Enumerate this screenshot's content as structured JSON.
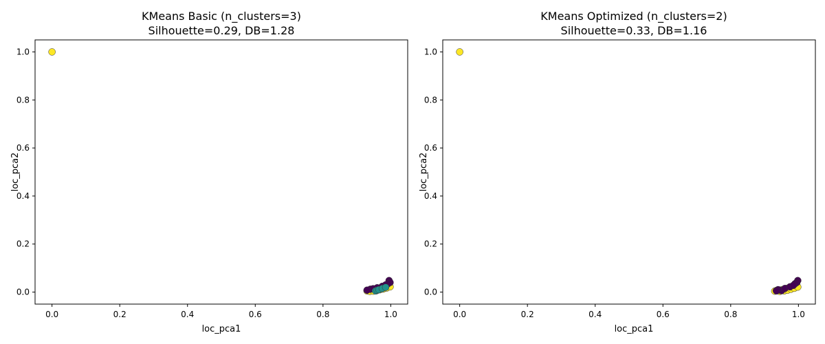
{
  "chart_data": [
    {
      "type": "scatter",
      "title_line1": "KMeans Basic (n_clusters=3)",
      "title_line2": "Silhouette=0.29, DB=1.28",
      "xlabel": "loc_pca1",
      "ylabel": "loc_pca2",
      "xlim": [
        -0.05,
        1.05
      ],
      "ylim": [
        -0.05,
        1.05
      ],
      "xticks": [
        "0.0",
        "0.2",
        "0.4",
        "0.6",
        "0.8",
        "1.0"
      ],
      "yticks": [
        "0.0",
        "0.2",
        "0.4",
        "0.6",
        "0.8",
        "1.0"
      ],
      "xtick_values": [
        0,
        0.2,
        0.4,
        0.6,
        0.8,
        1.0
      ],
      "ytick_values": [
        0,
        0.2,
        0.4,
        0.6,
        0.8,
        1.0
      ],
      "series": [
        {
          "color": "#fde725",
          "points": [
            [
              0.0,
              1.0
            ],
            [
              0.93,
              0.005
            ],
            [
              0.935,
              0.008
            ],
            [
              0.94,
              0.006
            ],
            [
              0.945,
              0.01
            ],
            [
              0.95,
              0.012
            ],
            [
              0.955,
              0.009
            ],
            [
              0.96,
              0.014
            ],
            [
              0.965,
              0.016
            ],
            [
              0.97,
              0.018
            ],
            [
              0.975,
              0.02
            ],
            [
              0.98,
              0.022
            ],
            [
              0.985,
              0.025
            ],
            [
              0.99,
              0.028
            ],
            [
              0.995,
              0.03
            ],
            [
              0.938,
              0.003
            ],
            [
              0.948,
              0.004
            ],
            [
              0.958,
              0.006
            ],
            [
              0.968,
              0.01
            ],
            [
              0.978,
              0.013
            ],
            [
              0.988,
              0.017
            ],
            [
              0.998,
              0.022
            ]
          ]
        },
        {
          "color": "#440154",
          "points": [
            [
              0.995,
              0.048
            ],
            [
              0.998,
              0.04
            ],
            [
              0.992,
              0.035
            ],
            [
              0.94,
              0.012
            ],
            [
              0.948,
              0.014
            ],
            [
              0.96,
              0.018
            ],
            [
              0.975,
              0.024
            ],
            [
              0.985,
              0.03
            ],
            [
              0.93,
              0.008
            ]
          ]
        },
        {
          "color": "#21918c",
          "points": [
            [
              0.955,
              0.005
            ],
            [
              0.96,
              0.008
            ],
            [
              0.965,
              0.01
            ],
            [
              0.975,
              0.015
            ],
            [
              0.985,
              0.02
            ]
          ]
        }
      ]
    },
    {
      "type": "scatter",
      "title_line1": "KMeans Optimized (n_clusters=2)",
      "title_line2": "Silhouette=0.33, DB=1.16",
      "xlabel": "loc_pca1",
      "ylabel": "loc_pca2",
      "xlim": [
        -0.05,
        1.05
      ],
      "ylim": [
        -0.05,
        1.05
      ],
      "xticks": [
        "0.0",
        "0.2",
        "0.4",
        "0.6",
        "0.8",
        "1.0"
      ],
      "yticks": [
        "0.0",
        "0.2",
        "0.4",
        "0.6",
        "0.8",
        "1.0"
      ],
      "xtick_values": [
        0,
        0.2,
        0.4,
        0.6,
        0.8,
        1.0
      ],
      "ytick_values": [
        0,
        0.2,
        0.4,
        0.6,
        0.8,
        1.0
      ],
      "series": [
        {
          "color": "#fde725",
          "points": [
            [
              0.0,
              1.0
            ],
            [
              0.93,
              0.004
            ],
            [
              0.935,
              0.007
            ],
            [
              0.94,
              0.006
            ],
            [
              0.95,
              0.009
            ],
            [
              0.955,
              0.011
            ],
            [
              0.96,
              0.013
            ],
            [
              0.965,
              0.015
            ],
            [
              0.97,
              0.017
            ],
            [
              0.975,
              0.02
            ],
            [
              0.98,
              0.022
            ],
            [
              0.985,
              0.025
            ],
            [
              0.99,
              0.027
            ],
            [
              0.995,
              0.03
            ],
            [
              0.945,
              0.003
            ],
            [
              0.958,
              0.005
            ],
            [
              0.968,
              0.008
            ],
            [
              0.978,
              0.012
            ],
            [
              0.988,
              0.016
            ],
            [
              0.998,
              0.021
            ]
          ]
        },
        {
          "color": "#440154",
          "points": [
            [
              0.998,
              0.048
            ],
            [
              0.995,
              0.04
            ],
            [
              0.99,
              0.035
            ],
            [
              0.945,
              0.008
            ],
            [
              0.95,
              0.006
            ],
            [
              0.94,
              0.01
            ],
            [
              0.96,
              0.015
            ],
            [
              0.975,
              0.022
            ],
            [
              0.985,
              0.028
            ],
            [
              0.935,
              0.005
            ]
          ]
        }
      ]
    }
  ]
}
